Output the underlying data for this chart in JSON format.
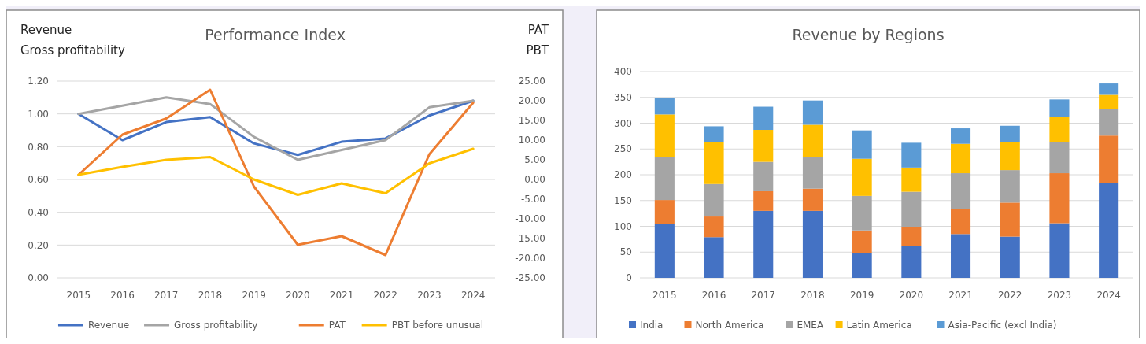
{
  "chart_data": [
    {
      "type": "line",
      "title": "Performance Index",
      "ylabel": "Revenue\nGross profitability",
      "y2label": "PAT\nPBT",
      "categories": [
        "2015",
        "2016",
        "2017",
        "2018",
        "2019",
        "2020",
        "2021",
        "2022",
        "2023",
        "2024"
      ],
      "series": [
        {
          "name": "Revenue",
          "color": "#4472c4",
          "values": [
            1.0,
            0.84,
            0.95,
            0.98,
            0.82,
            0.75,
            0.83,
            0.85,
            0.99,
            1.08
          ]
        },
        {
          "name": "Gross profitability",
          "color": "#a5a5a5",
          "values": [
            1.0,
            1.05,
            1.1,
            1.06,
            0.86,
            0.72,
            0.78,
            0.84,
            1.04,
            1.08
          ]
        },
        {
          "name": "PAT",
          "color": "#ed7d31",
          "axis": "y2",
          "values": [
            1.2,
            11.4,
            15.5,
            22.8,
            -1.8,
            -16.6,
            -14.4,
            -19.2,
            6.4,
            19.5
          ]
        },
        {
          "name": "PBT before unusual",
          "color": "#ffc000",
          "axis": "y2",
          "values": [
            1.2,
            3.2,
            5.0,
            5.7,
            0.0,
            -3.9,
            -1.0,
            -3.5,
            4.1,
            7.8
          ]
        }
      ],
      "ylim": [
        0,
        1.2
      ],
      "yticks": [
        {
          "value": 0,
          "label": "0.00"
        },
        {
          "value": 0.2,
          "label": "0.20"
        },
        {
          "value": 0.4,
          "label": "0.40"
        },
        {
          "value": 0.6,
          "label": "0.60"
        },
        {
          "value": 0.8,
          "label": "0.80"
        },
        {
          "value": 1.0,
          "label": "1.00"
        },
        {
          "value": 1.2,
          "label": "1.20"
        }
      ],
      "y2lim": [
        -25,
        25
      ],
      "y2ticks": [
        {
          "value": -25,
          "label": "-25.00"
        },
        {
          "value": -20,
          "label": "-20.00"
        },
        {
          "value": -15,
          "label": "-15.00"
        },
        {
          "value": -10,
          "label": "-10.00"
        },
        {
          "value": -5,
          "label": "-5.00"
        },
        {
          "value": 0,
          "label": "0.00"
        },
        {
          "value": 5,
          "label": "5.00"
        },
        {
          "value": 10,
          "label": "10.00"
        },
        {
          "value": 15,
          "label": "15.00"
        },
        {
          "value": 20,
          "label": "20.00"
        },
        {
          "value": 25,
          "label": "25.00"
        }
      ],
      "grid": "y",
      "legend": "bottom",
      "line_style": "solid"
    },
    {
      "type": "bar",
      "stacked": true,
      "title": "Revenue by Regions",
      "categories": [
        "2015",
        "2016",
        "2017",
        "2018",
        "2019",
        "2020",
        "2021",
        "2022",
        "2023",
        "2024"
      ],
      "series": [
        {
          "name": "India",
          "color": "#4472c4",
          "values": [
            105,
            79,
            130,
            130,
            48,
            62,
            85,
            80,
            106,
            184
          ]
        },
        {
          "name": "North America",
          "color": "#ed7d31",
          "values": [
            46,
            40,
            38,
            43,
            44,
            37,
            48,
            66,
            97,
            92
          ]
        },
        {
          "name": "EMEA",
          "color": "#a5a5a5",
          "values": [
            84,
            63,
            57,
            61,
            67,
            68,
            70,
            63,
            61,
            51
          ]
        },
        {
          "name": "Latin America",
          "color": "#ffc000",
          "values": [
            82,
            82,
            62,
            63,
            72,
            47,
            57,
            54,
            48,
            28
          ]
        },
        {
          "name": "Asia-Pacific (excl India)",
          "color": "#5b9bd5",
          "values": [
            32,
            30,
            45,
            47,
            55,
            48,
            30,
            32,
            34,
            22
          ]
        }
      ],
      "ylim": [
        0,
        400
      ],
      "yticks": [
        0,
        50,
        100,
        150,
        200,
        250,
        300,
        350,
        400
      ],
      "grid": "y",
      "legend": "bottom"
    }
  ]
}
